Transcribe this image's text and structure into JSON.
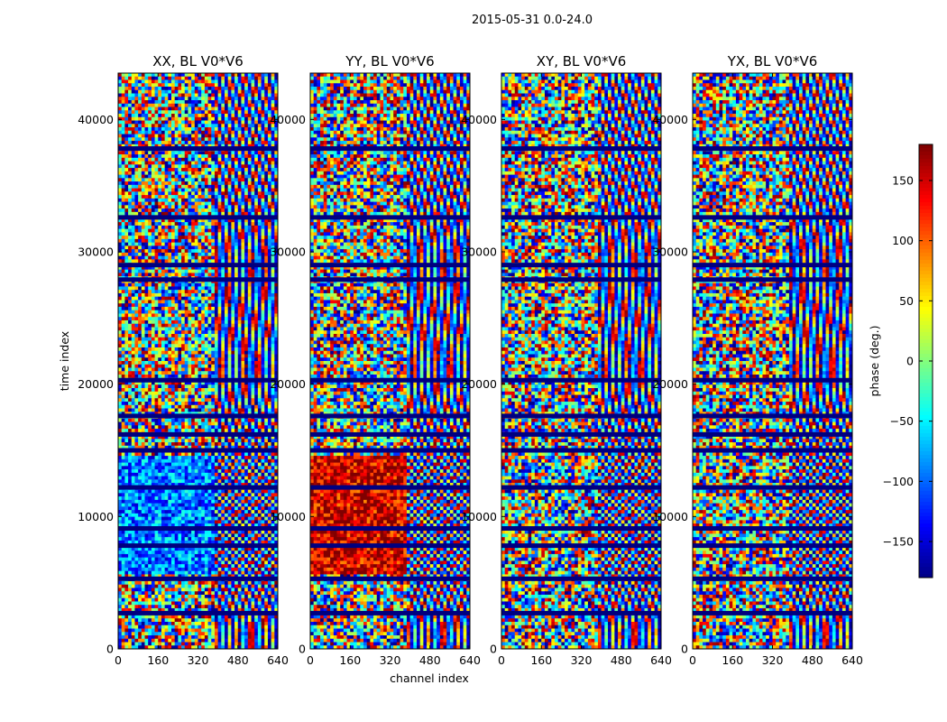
{
  "chart_data": {
    "type": "heatmap",
    "suptitle": "2015-05-31 0.0-24.0",
    "xlabel": "channel index",
    "ylabel": "time index",
    "xlim": [
      0,
      640
    ],
    "ylim": [
      0,
      43500
    ],
    "xticks": [
      0,
      160,
      320,
      480,
      640
    ],
    "yticks": [
      0,
      10000,
      20000,
      30000,
      40000
    ],
    "colormap": "jet",
    "colorbar": {
      "label": "phase (deg.)",
      "range": [
        -180,
        180
      ],
      "ticks": [
        -150,
        -100,
        -50,
        0,
        50,
        100,
        150
      ]
    },
    "panels": [
      {
        "title": "XX, BL V0*V6",
        "low_channel_mean_phase": -90
      },
      {
        "title": "YY, BL V0*V6",
        "low_channel_mean_phase": 150
      },
      {
        "title": "XY, BL V0*V6",
        "low_channel_mean_phase": null
      },
      {
        "title": "YX, BL V0*V6",
        "low_channel_mean_phase": null
      }
    ],
    "flagged_time_index": [
      37800,
      32600,
      29000,
      27900,
      20300,
      17600,
      16200,
      15000,
      12200,
      9100,
      7800,
      5300,
      2700
    ]
  }
}
